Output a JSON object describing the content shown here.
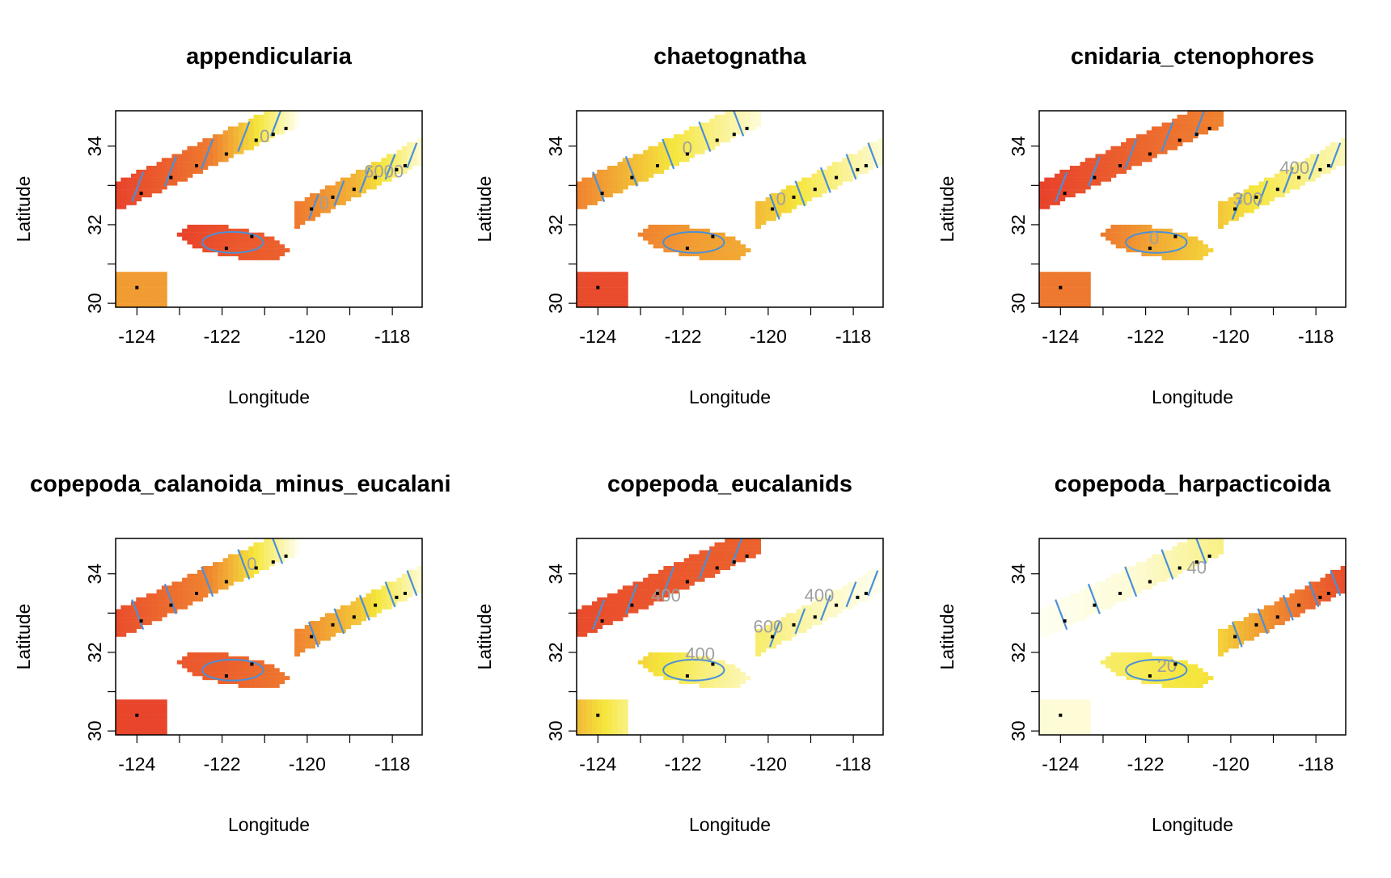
{
  "chart_data": [
    {
      "type": "heatmap",
      "title": "appendicularia",
      "xlabel": "Longitude",
      "ylabel": "Latitude",
      "xlim": [
        -124.5,
        -117.3
      ],
      "ylim": [
        29.9,
        34.9
      ],
      "xticks": [
        -124,
        -122,
        -120,
        -118
      ],
      "yticks": [
        30,
        32,
        34
      ],
      "field": {
        "regions": {
          "north": [
            0.0,
            0.25,
            1.0
          ],
          "mid": [
            0.0,
            0.1,
            0.15
          ],
          "south": [
            0.25,
            0.5,
            0.95
          ],
          "far": [
            0.4,
            0.4,
            0.4
          ]
        }
      },
      "contour_labels": [
        {
          "text": "6000",
          "x": -118.2,
          "y": 33.2
        },
        {
          "text": "0",
          "x": -119.6,
          "y": 32.4
        },
        {
          "text": "0",
          "x": -121.0,
          "y": 34.1
        }
      ],
      "stations": [
        [
          -124,
          30.4
        ],
        [
          -123.9,
          32.8
        ],
        [
          -123.2,
          33.2
        ],
        [
          -122.6,
          33.5
        ],
        [
          -121.9,
          31.4
        ],
        [
          -121.9,
          33.8
        ],
        [
          -121.3,
          31.7
        ],
        [
          -121.2,
          34.15
        ],
        [
          -120.8,
          34.3
        ],
        [
          -120.5,
          34.45
        ],
        [
          -119.9,
          32.4
        ],
        [
          -119.4,
          32.7
        ],
        [
          -118.9,
          32.9
        ],
        [
          -118.4,
          33.2
        ],
        [
          -117.9,
          33.4
        ],
        [
          -117.7,
          33.5
        ]
      ]
    },
    {
      "type": "heatmap",
      "title": "chaetognatha",
      "xlabel": "Longitude",
      "ylabel": "Latitude",
      "xlim": [
        -124.5,
        -117.3
      ],
      "ylim": [
        29.9,
        34.9
      ],
      "xticks": [
        -124,
        -122,
        -120,
        -118
      ],
      "yticks": [
        30,
        32,
        34
      ],
      "field": {
        "regions": {
          "north": [
            0.3,
            0.65,
            0.95
          ],
          "mid": [
            0.3,
            0.4,
            0.45
          ],
          "south": [
            0.5,
            0.75,
            0.95
          ],
          "far": [
            0.05,
            0.05,
            0.05
          ]
        }
      },
      "contour_labels": [
        {
          "text": "0",
          "x": -121.9,
          "y": 33.8
        },
        {
          "text": "0",
          "x": -119.7,
          "y": 32.5
        }
      ],
      "stations": [
        [
          -124,
          30.4
        ],
        [
          -123.9,
          32.8
        ],
        [
          -123.2,
          33.2
        ],
        [
          -122.6,
          33.5
        ],
        [
          -121.9,
          31.4
        ],
        [
          -121.9,
          33.8
        ],
        [
          -121.3,
          31.7
        ],
        [
          -121.2,
          34.15
        ],
        [
          -120.8,
          34.3
        ],
        [
          -120.5,
          34.45
        ],
        [
          -119.9,
          32.4
        ],
        [
          -119.4,
          32.7
        ],
        [
          -118.9,
          32.9
        ],
        [
          -118.4,
          33.2
        ],
        [
          -117.9,
          33.4
        ],
        [
          -117.7,
          33.5
        ]
      ]
    },
    {
      "type": "heatmap",
      "title": "cnidaria_ctenophores",
      "xlabel": "Longitude",
      "ylabel": "Latitude",
      "xlim": [
        -124.5,
        -117.3
      ],
      "ylim": [
        29.9,
        34.9
      ],
      "xticks": [
        -124,
        -122,
        -120,
        -118
      ],
      "yticks": [
        30,
        32,
        34
      ],
      "field": {
        "regions": {
          "north": [
            0.0,
            0.15,
            0.3
          ],
          "mid": [
            0.25,
            0.45,
            0.6
          ],
          "south": [
            0.55,
            0.75,
            0.9
          ],
          "far": [
            0.25,
            0.25,
            0.25
          ]
        }
      },
      "contour_labels": [
        {
          "text": "400",
          "x": -118.5,
          "y": 33.3
        },
        {
          "text": "300",
          "x": -119.6,
          "y": 32.5
        },
        {
          "text": "0",
          "x": -121.8,
          "y": 31.5
        }
      ],
      "stations": [
        [
          -124,
          30.4
        ],
        [
          -123.9,
          32.8
        ],
        [
          -123.2,
          33.2
        ],
        [
          -122.6,
          33.5
        ],
        [
          -121.9,
          31.4
        ],
        [
          -121.9,
          33.8
        ],
        [
          -121.3,
          31.7
        ],
        [
          -121.2,
          34.15
        ],
        [
          -120.8,
          34.3
        ],
        [
          -120.5,
          34.45
        ],
        [
          -119.9,
          32.4
        ],
        [
          -119.4,
          32.7
        ],
        [
          -118.9,
          32.9
        ],
        [
          -118.4,
          33.2
        ],
        [
          -117.9,
          33.4
        ],
        [
          -117.7,
          33.5
        ]
      ]
    },
    {
      "type": "heatmap",
      "title": "copepoda_calanoida_minus_eucalani",
      "xlabel": "Longitude",
      "ylabel": "Latitude",
      "xlim": [
        -124.5,
        -117.3
      ],
      "ylim": [
        29.9,
        34.9
      ],
      "xticks": [
        -124,
        -122,
        -120,
        -118
      ],
      "yticks": [
        30,
        32,
        34
      ],
      "field": {
        "regions": {
          "north": [
            0.05,
            0.3,
            1.0
          ],
          "mid": [
            0.1,
            0.15,
            0.25
          ],
          "south": [
            0.3,
            0.55,
            0.95
          ],
          "far": [
            0.02,
            0.02,
            0.02
          ]
        }
      },
      "contour_labels": [
        {
          "text": "0",
          "x": -121.3,
          "y": 34.1
        }
      ],
      "stations": [
        [
          -124,
          30.4
        ],
        [
          -123.9,
          32.8
        ],
        [
          -123.2,
          33.2
        ],
        [
          -122.6,
          33.5
        ],
        [
          -121.9,
          31.4
        ],
        [
          -121.9,
          33.8
        ],
        [
          -121.3,
          31.7
        ],
        [
          -121.2,
          34.15
        ],
        [
          -120.8,
          34.3
        ],
        [
          -120.5,
          34.45
        ],
        [
          -119.9,
          32.4
        ],
        [
          -119.4,
          32.7
        ],
        [
          -118.9,
          32.9
        ],
        [
          -118.4,
          33.2
        ],
        [
          -117.9,
          33.4
        ],
        [
          -117.7,
          33.5
        ]
      ]
    },
    {
      "type": "heatmap",
      "title": "copepoda_eucalanids",
      "xlabel": "Longitude",
      "ylabel": "Latitude",
      "xlim": [
        -124.5,
        -117.3
      ],
      "ylim": [
        29.9,
        34.9
      ],
      "xticks": [
        -124,
        -122,
        -120,
        -118
      ],
      "yticks": [
        30,
        32,
        34
      ],
      "field": {
        "regions": {
          "north": [
            0.05,
            0.1,
            0.15
          ],
          "mid": [
            0.6,
            0.75,
            0.9
          ],
          "south": [
            0.75,
            0.9,
            1.0
          ],
          "far": [
            0.5,
            0.65,
            0.8
          ]
        }
      },
      "contour_labels": [
        {
          "text": "400",
          "x": -118.8,
          "y": 33.3
        },
        {
          "text": "600",
          "x": -120.0,
          "y": 32.5
        },
        {
          "text": "400",
          "x": -121.6,
          "y": 31.8
        },
        {
          "text": "400",
          "x": -122.4,
          "y": 33.3
        }
      ],
      "stations": [
        [
          -124,
          30.4
        ],
        [
          -123.9,
          32.8
        ],
        [
          -123.2,
          33.2
        ],
        [
          -122.6,
          33.5
        ],
        [
          -121.9,
          31.4
        ],
        [
          -121.9,
          33.8
        ],
        [
          -121.3,
          31.7
        ],
        [
          -121.2,
          34.15
        ],
        [
          -120.8,
          34.3
        ],
        [
          -120.5,
          34.45
        ],
        [
          -119.9,
          32.4
        ],
        [
          -119.4,
          32.7
        ],
        [
          -118.9,
          32.9
        ],
        [
          -118.4,
          33.2
        ],
        [
          -117.9,
          33.4
        ],
        [
          -117.7,
          33.5
        ]
      ]
    },
    {
      "type": "heatmap",
      "title": "copepoda_harpacticoida",
      "xlabel": "Longitude",
      "ylabel": "Latitude",
      "xlim": [
        -124.5,
        -117.3
      ],
      "ylim": [
        29.9,
        34.9
      ],
      "xticks": [
        -124,
        -122,
        -120,
        -118
      ],
      "yticks": [
        30,
        32,
        34
      ],
      "field": {
        "regions": {
          "north": [
            1.0,
            0.95,
            0.8
          ],
          "mid": [
            0.75,
            0.7,
            0.65
          ],
          "south": [
            0.6,
            0.3,
            0.05
          ],
          "far": [
            0.95,
            0.95,
            0.95
          ]
        }
      },
      "contour_labels": [
        {
          "text": "40",
          "x": -120.8,
          "y": 34.0
        },
        {
          "text": "20",
          "x": -121.5,
          "y": 31.5
        }
      ],
      "stations": [
        [
          -124,
          30.4
        ],
        [
          -123.9,
          32.8
        ],
        [
          -123.2,
          33.2
        ],
        [
          -122.6,
          33.5
        ],
        [
          -121.9,
          31.4
        ],
        [
          -121.9,
          33.8
        ],
        [
          -121.3,
          31.7
        ],
        [
          -121.2,
          34.15
        ],
        [
          -120.8,
          34.3
        ],
        [
          -120.5,
          34.45
        ],
        [
          -119.9,
          32.4
        ],
        [
          -119.4,
          32.7
        ],
        [
          -118.9,
          32.9
        ],
        [
          -118.4,
          33.2
        ],
        [
          -117.9,
          33.4
        ],
        [
          -117.7,
          33.5
        ]
      ]
    }
  ],
  "colors": {
    "high": "#e8412b",
    "mid_orange": "#f08a30",
    "mid_yellow": "#f5e63c",
    "low": "#fffff2",
    "contour": "#4a90d9",
    "contour_label": "#a0a0a0",
    "station": "#000000"
  }
}
